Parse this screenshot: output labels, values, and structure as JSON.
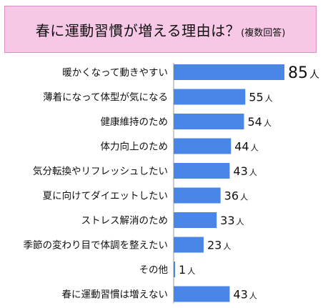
{
  "chart_data": {
    "type": "bar",
    "orientation": "horizontal",
    "title": "春に運動習慣が増える理由は？",
    "subtitle": "(複数回答)",
    "unit": "人",
    "bar_color": "#4a86e8",
    "categories": [
      "暖かくなって動きやすい",
      "薄着になって体型が気になる",
      "健康維持のため",
      "体力向上のため",
      "気分転換やリフレッシュしたい",
      "夏に向けてダイエットしたい",
      "ストレス解消のため",
      "季節の変わり目で体調を整えたい",
      "その他",
      "春に運動習慣は増えない"
    ],
    "values": [
      85,
      55,
      54,
      44,
      43,
      36,
      33,
      23,
      1,
      43
    ],
    "xlim": [
      0,
      85
    ],
    "grid": false,
    "legend": "none"
  }
}
